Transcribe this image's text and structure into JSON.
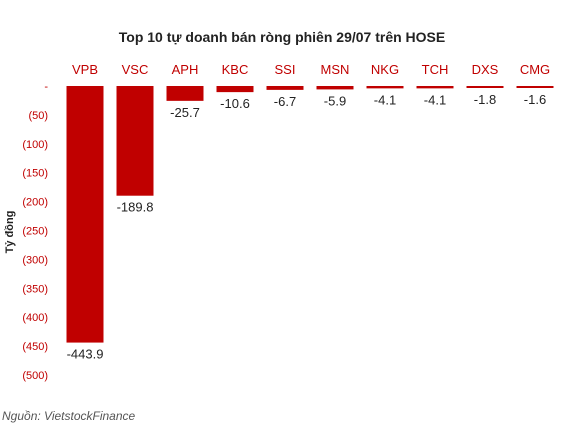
{
  "chart_data": {
    "type": "bar",
    "title": "Top 10 tự doanh bán ròng phiên 29/07 trên HOSE",
    "ylabel": "Tỷ đồng",
    "xlabel": "",
    "categories": [
      "VPB",
      "VSC",
      "APH",
      "KBC",
      "SSI",
      "MSN",
      "NKG",
      "TCH",
      "DXS",
      "CMG"
    ],
    "values": [
      -443.9,
      -189.8,
      -25.7,
      -10.6,
      -6.7,
      -5.9,
      -4.1,
      -4.1,
      -1.8,
      -1.6
    ],
    "value_labels": [
      "-443.9",
      "-189.8",
      "-25.7",
      "-10.6",
      "-6.7",
      "-5.9",
      "-4.1",
      "-4.1",
      "-1.8",
      "-1.6"
    ],
    "ylim": [
      -500,
      0
    ],
    "yticks": [
      0,
      -50,
      -100,
      -150,
      -200,
      -250,
      -300,
      -350,
      -400,
      -450,
      -500
    ],
    "ytick_labels": [
      "-",
      "(50)",
      "(100)",
      "(150)",
      "(200)",
      "(250)",
      "(300)",
      "(350)",
      "(400)",
      "(450)",
      "(500)"
    ],
    "grid": false,
    "legend": "none",
    "colors": {
      "bar": "#c00000",
      "category_label": "#c00000",
      "tick_label": "#c00000",
      "value_label": "#222222"
    }
  },
  "source": "Nguồn: VietstockFinance"
}
